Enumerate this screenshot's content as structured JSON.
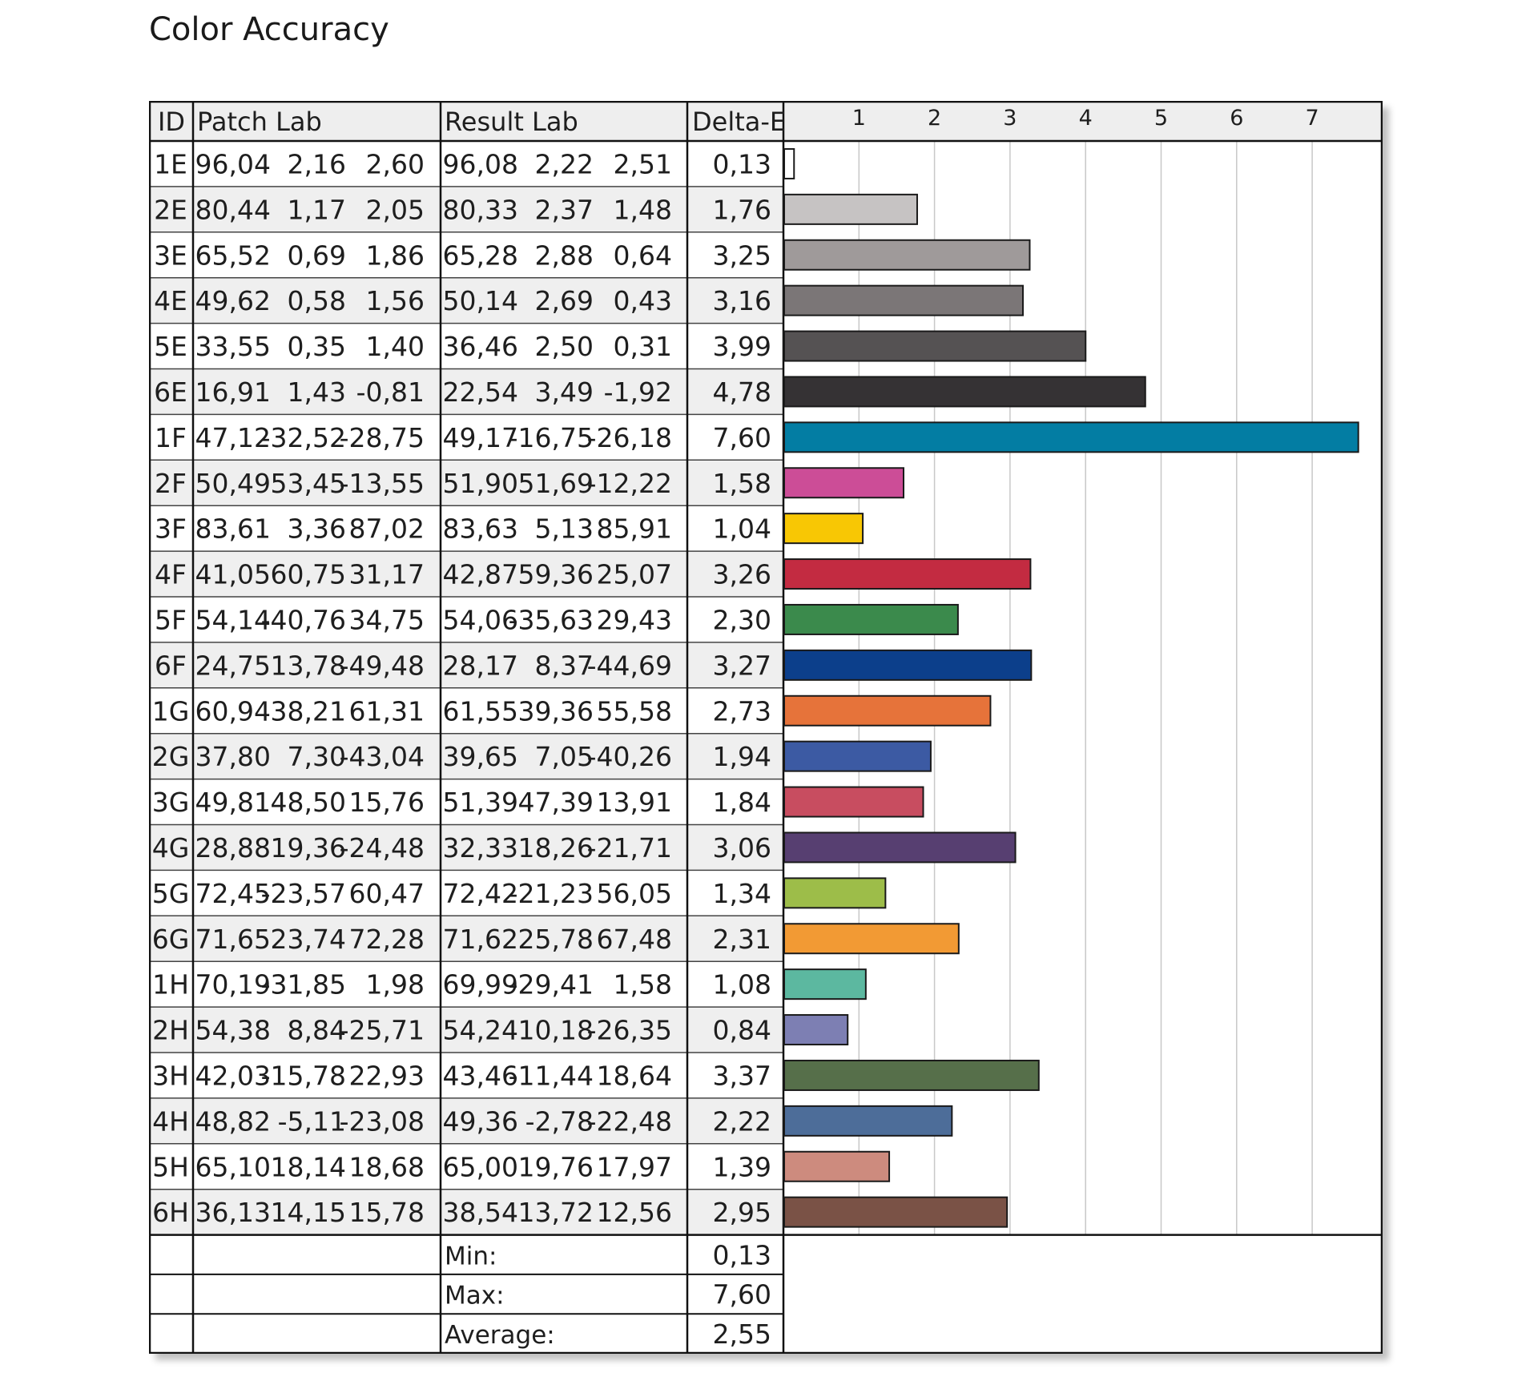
{
  "title": "Color Accuracy",
  "columns": {
    "id": "ID",
    "patch": "Patch Lab",
    "result": "Result Lab",
    "delta": "Delta-E"
  },
  "rows": [
    {
      "id": "1E",
      "patch": [
        "96,04",
        "2,16",
        "2,60"
      ],
      "result": [
        "96,08",
        "2,22",
        "2,51"
      ],
      "delta": "0,13",
      "color": "#ffffff"
    },
    {
      "id": "2E",
      "patch": [
        "80,44",
        "1,17",
        "2,05"
      ],
      "result": [
        "80,33",
        "2,37",
        "1,48"
      ],
      "delta": "1,76",
      "color": "#c6c3c3"
    },
    {
      "id": "3E",
      "patch": [
        "65,52",
        "0,69",
        "1,86"
      ],
      "result": [
        "65,28",
        "2,88",
        "0,64"
      ],
      "delta": "3,25",
      "color": "#9f9a9a"
    },
    {
      "id": "4E",
      "patch": [
        "49,62",
        "0,58",
        "1,56"
      ],
      "result": [
        "50,14",
        "2,69",
        "0,43"
      ],
      "delta": "3,16",
      "color": "#7b7677"
    },
    {
      "id": "5E",
      "patch": [
        "33,55",
        "0,35",
        "1,40"
      ],
      "result": [
        "36,46",
        "2,50",
        "0,31"
      ],
      "delta": "3,99",
      "color": "#555253"
    },
    {
      "id": "6E",
      "patch": [
        "16,91",
        "1,43",
        "-0,81"
      ],
      "result": [
        "22,54",
        "3,49",
        "-1,92"
      ],
      "delta": "4,78",
      "color": "#353234"
    },
    {
      "id": "1F",
      "patch": [
        "47,12",
        "-32,52",
        "-28,75"
      ],
      "result": [
        "49,17",
        "-16,75",
        "-26,18"
      ],
      "delta": "7,60",
      "color": "#037da3"
    },
    {
      "id": "2F",
      "patch": [
        "50,49",
        "53,45",
        "-13,55"
      ],
      "result": [
        "51,90",
        "51,69",
        "-12,22"
      ],
      "delta": "1,58",
      "color": "#cc4d97"
    },
    {
      "id": "3F",
      "patch": [
        "83,61",
        "3,36",
        "87,02"
      ],
      "result": [
        "83,63",
        "5,13",
        "85,91"
      ],
      "delta": "1,04",
      "color": "#f8c704"
    },
    {
      "id": "4F",
      "patch": [
        "41,05",
        "60,75",
        "31,17"
      ],
      "result": [
        "42,87",
        "59,36",
        "25,07"
      ],
      "delta": "3,26",
      "color": "#c32b41"
    },
    {
      "id": "5F",
      "patch": [
        "54,14",
        "-40,76",
        "34,75"
      ],
      "result": [
        "54,06",
        "-35,63",
        "29,43"
      ],
      "delta": "2,30",
      "color": "#3b8a4c"
    },
    {
      "id": "6F",
      "patch": [
        "24,75",
        "13,78",
        "-49,48"
      ],
      "result": [
        "28,17",
        "8,37",
        "-44,69"
      ],
      "delta": "3,27",
      "color": "#0c3f8b"
    },
    {
      "id": "1G",
      "patch": [
        "60,94",
        "38,21",
        "61,31"
      ],
      "result": [
        "61,55",
        "39,36",
        "55,58"
      ],
      "delta": "2,73",
      "color": "#e6733a"
    },
    {
      "id": "2G",
      "patch": [
        "37,80",
        "7,30",
        "-43,04"
      ],
      "result": [
        "39,65",
        "7,05",
        "-40,26"
      ],
      "delta": "1,94",
      "color": "#3c5aa3"
    },
    {
      "id": "3G",
      "patch": [
        "49,81",
        "48,50",
        "15,76"
      ],
      "result": [
        "51,39",
        "47,39",
        "13,91"
      ],
      "delta": "1,84",
      "color": "#c84d60"
    },
    {
      "id": "4G",
      "patch": [
        "28,88",
        "19,36",
        "-24,48"
      ],
      "result": [
        "32,33",
        "18,26",
        "-21,71"
      ],
      "delta": "3,06",
      "color": "#573f71"
    },
    {
      "id": "5G",
      "patch": [
        "72,45",
        "-23,57",
        "60,47"
      ],
      "result": [
        "72,42",
        "-21,23",
        "56,05"
      ],
      "delta": "1,34",
      "color": "#9dbd49"
    },
    {
      "id": "6G",
      "patch": [
        "71,65",
        "23,74",
        "72,28"
      ],
      "result": [
        "71,62",
        "25,78",
        "67,48"
      ],
      "delta": "2,31",
      "color": "#f29a34"
    },
    {
      "id": "1H",
      "patch": [
        "70,19",
        "-31,85",
        "1,98"
      ],
      "result": [
        "69,99",
        "-29,41",
        "1,58"
      ],
      "delta": "1,08",
      "color": "#5cb8a0"
    },
    {
      "id": "2H",
      "patch": [
        "54,38",
        "8,84",
        "-25,71"
      ],
      "result": [
        "54,24",
        "10,18",
        "-26,35"
      ],
      "delta": "0,84",
      "color": "#7d7fb3"
    },
    {
      "id": "3H",
      "patch": [
        "42,03",
        "-15,78",
        "22,93"
      ],
      "result": [
        "43,46",
        "-11,44",
        "18,64"
      ],
      "delta": "3,37",
      "color": "#566f4a"
    },
    {
      "id": "4H",
      "patch": [
        "48,82",
        "-5,11",
        "-23,08"
      ],
      "result": [
        "49,36",
        "-2,78",
        "-22,48"
      ],
      "delta": "2,22",
      "color": "#4d6d99"
    },
    {
      "id": "5H",
      "patch": [
        "65,10",
        "18,14",
        "18,68"
      ],
      "result": [
        "65,00",
        "19,76",
        "17,97"
      ],
      "delta": "1,39",
      "color": "#cd8b7e"
    },
    {
      "id": "6H",
      "patch": [
        "36,13",
        "14,15",
        "15,78"
      ],
      "result": [
        "38,54",
        "13,72",
        "12,56"
      ],
      "delta": "2,95",
      "color": "#7a5246"
    }
  ],
  "summary": [
    {
      "label": "Min:",
      "value": "0,13"
    },
    {
      "label": "Max:",
      "value": "7,60"
    },
    {
      "label": "Average:",
      "value": "2,55"
    }
  ],
  "chart_data": {
    "type": "bar",
    "orientation": "horizontal",
    "title": "Color Accuracy",
    "xlabel": "",
    "ylabel": "",
    "xlim": [
      0,
      8
    ],
    "xticks": [
      "1",
      "2",
      "3",
      "4",
      "5",
      "6",
      "7"
    ],
    "grid": true,
    "categories": [
      "1E",
      "2E",
      "3E",
      "4E",
      "5E",
      "6E",
      "1F",
      "2F",
      "3F",
      "4F",
      "5F",
      "6F",
      "1G",
      "2G",
      "3G",
      "4G",
      "5G",
      "6G",
      "1H",
      "2H",
      "3H",
      "4H",
      "5H",
      "6H"
    ],
    "values": [
      0.13,
      1.76,
      3.25,
      3.16,
      3.99,
      4.78,
      7.6,
      1.58,
      1.04,
      3.26,
      2.3,
      3.27,
      2.73,
      1.94,
      1.84,
      3.06,
      1.34,
      2.31,
      1.08,
      0.84,
      3.37,
      2.22,
      1.39,
      2.95
    ]
  }
}
